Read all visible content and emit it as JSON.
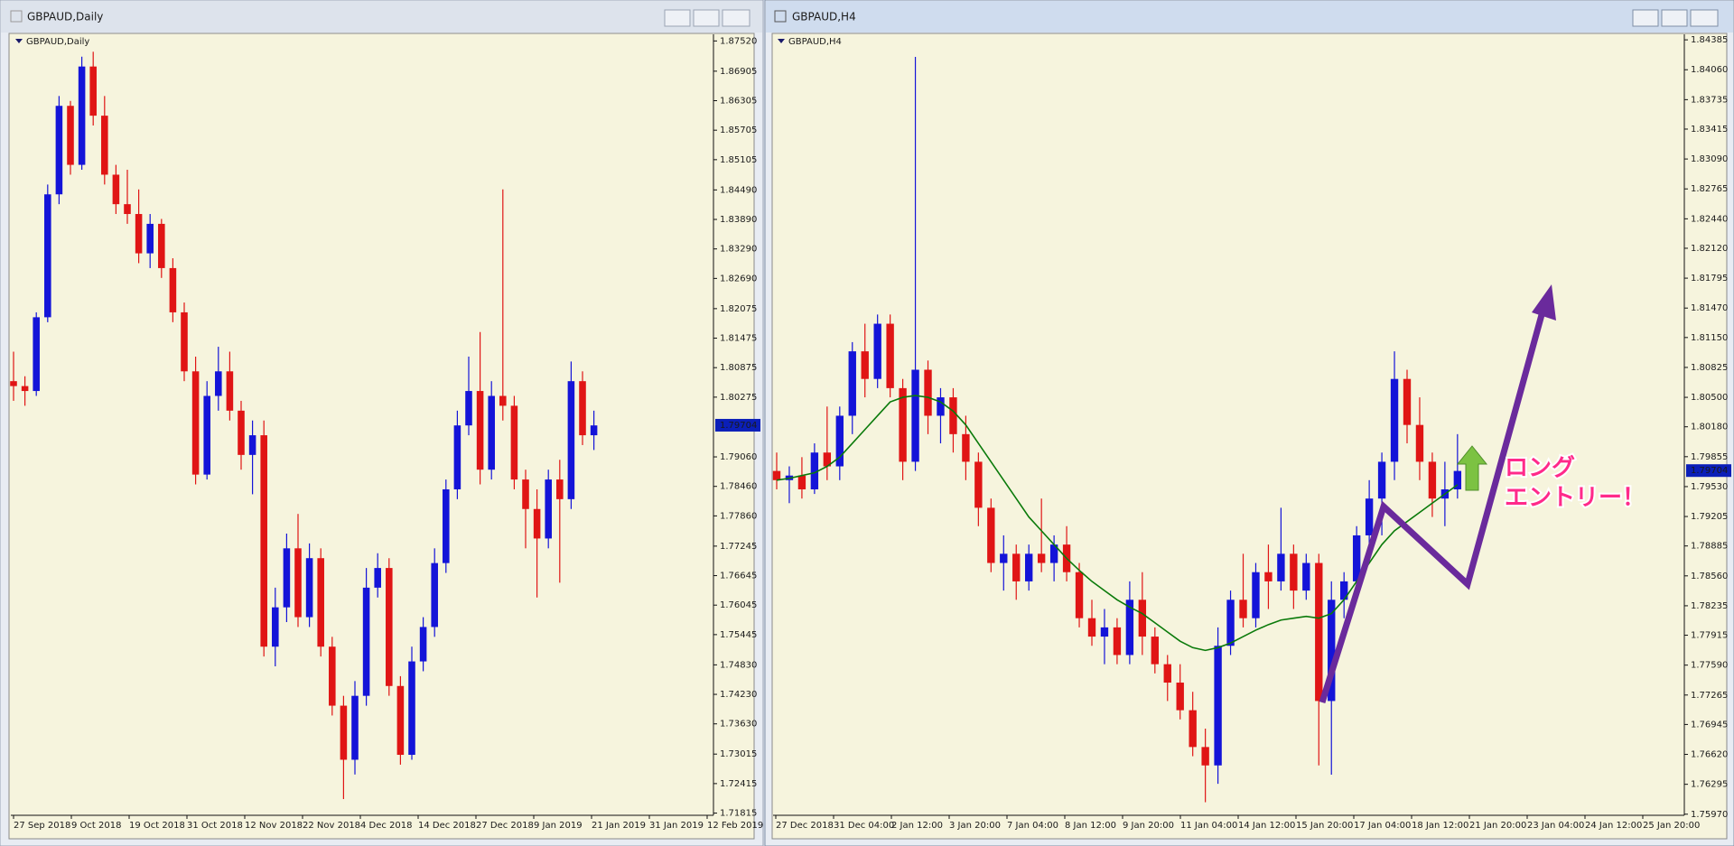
{
  "windows": [
    {
      "title": "GBPAUD,Daily",
      "active": false,
      "chart_data": {
        "type": "candlestick",
        "candles": [
          [
            1.806,
            1.812,
            1.802,
            1.805
          ],
          [
            1.805,
            1.807,
            1.801,
            1.804
          ],
          [
            1.804,
            1.82,
            1.803,
            1.819
          ],
          [
            1.819,
            1.846,
            1.818,
            1.844
          ],
          [
            1.844,
            1.864,
            1.842,
            1.862
          ],
          [
            1.862,
            1.863,
            1.848,
            1.85
          ],
          [
            1.85,
            1.872,
            1.849,
            1.87
          ],
          [
            1.87,
            1.873,
            1.858,
            1.86
          ],
          [
            1.86,
            1.864,
            1.846,
            1.848
          ],
          [
            1.848,
            1.85,
            1.84,
            1.842
          ],
          [
            1.842,
            1.849,
            1.838,
            1.84
          ],
          [
            1.84,
            1.845,
            1.83,
            1.832
          ],
          [
            1.832,
            1.84,
            1.829,
            1.838
          ],
          [
            1.838,
            1.839,
            1.827,
            1.829
          ],
          [
            1.829,
            1.831,
            1.818,
            1.82
          ],
          [
            1.82,
            1.822,
            1.806,
            1.808
          ],
          [
            1.808,
            1.811,
            1.785,
            1.787
          ],
          [
            1.787,
            1.806,
            1.786,
            1.803
          ],
          [
            1.803,
            1.813,
            1.8,
            1.808
          ],
          [
            1.808,
            1.812,
            1.798,
            1.8
          ],
          [
            1.8,
            1.802,
            1.788,
            1.791
          ],
          [
            1.791,
            1.798,
            1.783,
            1.795
          ],
          [
            1.795,
            1.798,
            1.75,
            1.752
          ],
          [
            1.752,
            1.764,
            1.748,
            1.76
          ],
          [
            1.76,
            1.775,
            1.757,
            1.772
          ],
          [
            1.772,
            1.779,
            1.756,
            1.758
          ],
          [
            1.758,
            1.773,
            1.756,
            1.77
          ],
          [
            1.77,
            1.772,
            1.75,
            1.752
          ],
          [
            1.752,
            1.754,
            1.738,
            1.74
          ],
          [
            1.74,
            1.742,
            1.721,
            1.729
          ],
          [
            1.729,
            1.745,
            1.726,
            1.742
          ],
          [
            1.742,
            1.768,
            1.74,
            1.764
          ],
          [
            1.764,
            1.771,
            1.762,
            1.768
          ],
          [
            1.768,
            1.77,
            1.742,
            1.744
          ],
          [
            1.744,
            1.746,
            1.728,
            1.73
          ],
          [
            1.73,
            1.752,
            1.729,
            1.749
          ],
          [
            1.749,
            1.758,
            1.747,
            1.756
          ],
          [
            1.756,
            1.772,
            1.754,
            1.769
          ],
          [
            1.769,
            1.786,
            1.767,
            1.784
          ],
          [
            1.784,
            1.8,
            1.782,
            1.797
          ],
          [
            1.797,
            1.811,
            1.795,
            1.804
          ],
          [
            1.804,
            1.816,
            1.785,
            1.788
          ],
          [
            1.788,
            1.806,
            1.786,
            1.803
          ],
          [
            1.803,
            1.845,
            1.798,
            1.801
          ],
          [
            1.801,
            1.803,
            1.784,
            1.786
          ],
          [
            1.786,
            1.788,
            1.772,
            1.78
          ],
          [
            1.78,
            1.784,
            1.762,
            1.774
          ],
          [
            1.774,
            1.788,
            1.772,
            1.786
          ],
          [
            1.786,
            1.79,
            1.765,
            1.782
          ],
          [
            1.782,
            1.81,
            1.78,
            1.806
          ],
          [
            1.806,
            1.808,
            1.793,
            1.795
          ],
          [
            1.795,
            1.8,
            1.792,
            1.797
          ]
        ],
        "x_labels": [
          "27 Sep 2018",
          "9 Oct 2018",
          "19 Oct 2018",
          "31 Oct 2018",
          "12 Nov 2018",
          "22 Nov 2018",
          "4 Dec 2018",
          "14 Dec 2018",
          "27 Dec 2018",
          "9 Jan 2019",
          "21 Jan 2019",
          "31 Jan 2019",
          "12 Feb 2019"
        ],
        "ylim": [
          1.7177,
          1.87655
        ],
        "yticks": [
          {
            "value": 1.8752,
            "label": "1.87520"
          },
          {
            "value": 1.86905,
            "label": "1.86905"
          },
          {
            "value": 1.86305,
            "label": "1.86305"
          },
          {
            "value": 1.85705,
            "label": "1.85705"
          },
          {
            "value": 1.85105,
            "label": "1.85105"
          },
          {
            "value": 1.8449,
            "label": "1.84490"
          },
          {
            "value": 1.8389,
            "label": "1.83890"
          },
          {
            "value": 1.8329,
            "label": "1.83290"
          },
          {
            "value": 1.8269,
            "label": "1.82690"
          },
          {
            "value": 1.82075,
            "label": "1.82075"
          },
          {
            "value": 1.81475,
            "label": "1.81475"
          },
          {
            "value": 1.80875,
            "label": "1.80875"
          },
          {
            "value": 1.80275,
            "label": "1.80275"
          },
          {
            "value": 1.7906,
            "label": "1.79060"
          },
          {
            "value": 1.7846,
            "label": "1.78460"
          },
          {
            "value": 1.7786,
            "label": "1.77860"
          },
          {
            "value": 1.77245,
            "label": "1.77245"
          },
          {
            "value": 1.76645,
            "label": "1.76645"
          },
          {
            "value": 1.76045,
            "label": "1.76045"
          },
          {
            "value": 1.75445,
            "label": "1.75445"
          },
          {
            "value": 1.7483,
            "label": "1.74830"
          },
          {
            "value": 1.7423,
            "label": "1.74230"
          },
          {
            "value": 1.7363,
            "label": "1.73630"
          },
          {
            "value": 1.73015,
            "label": "1.73015"
          },
          {
            "value": 1.72415,
            "label": "1.72415"
          },
          {
            "value": 1.71815,
            "label": "1.71815"
          }
        ],
        "current_price": 1.79704,
        "up_color": "#1414d8",
        "down_color": "#e01515"
      }
    },
    {
      "title": "GBPAUD,H4",
      "active": true,
      "chart_data": {
        "type": "candlestick",
        "candles": [
          [
            1.797,
            1.799,
            1.795,
            1.796
          ],
          [
            1.796,
            1.7975,
            1.7935,
            1.7965
          ],
          [
            1.7965,
            1.7985,
            1.794,
            1.795
          ],
          [
            1.795,
            1.8,
            1.7945,
            1.799
          ],
          [
            1.799,
            1.804,
            1.796,
            1.7975
          ],
          [
            1.7975,
            1.804,
            1.796,
            1.803
          ],
          [
            1.803,
            1.811,
            1.801,
            1.81
          ],
          [
            1.81,
            1.813,
            1.805,
            1.807
          ],
          [
            1.807,
            1.814,
            1.806,
            1.813
          ],
          [
            1.813,
            1.814,
            1.805,
            1.806
          ],
          [
            1.806,
            1.807,
            1.796,
            1.798
          ],
          [
            1.798,
            1.842,
            1.797,
            1.808
          ],
          [
            1.808,
            1.809,
            1.801,
            1.803
          ],
          [
            1.803,
            1.806,
            1.8,
            1.805
          ],
          [
            1.805,
            1.806,
            1.799,
            1.801
          ],
          [
            1.801,
            1.803,
            1.796,
            1.798
          ],
          [
            1.798,
            1.799,
            1.791,
            1.793
          ],
          [
            1.793,
            1.794,
            1.786,
            1.787
          ],
          [
            1.787,
            1.79,
            1.784,
            1.788
          ],
          [
            1.788,
            1.789,
            1.783,
            1.785
          ],
          [
            1.785,
            1.789,
            1.784,
            1.788
          ],
          [
            1.788,
            1.794,
            1.786,
            1.787
          ],
          [
            1.787,
            1.79,
            1.785,
            1.789
          ],
          [
            1.789,
            1.791,
            1.785,
            1.786
          ],
          [
            1.786,
            1.787,
            1.78,
            1.781
          ],
          [
            1.781,
            1.783,
            1.778,
            1.779
          ],
          [
            1.779,
            1.782,
            1.776,
            1.78
          ],
          [
            1.78,
            1.781,
            1.776,
            1.777
          ],
          [
            1.777,
            1.785,
            1.776,
            1.783
          ],
          [
            1.783,
            1.786,
            1.777,
            1.779
          ],
          [
            1.779,
            1.78,
            1.775,
            1.776
          ],
          [
            1.776,
            1.777,
            1.772,
            1.774
          ],
          [
            1.774,
            1.776,
            1.77,
            1.771
          ],
          [
            1.771,
            1.773,
            1.766,
            1.767
          ],
          [
            1.767,
            1.769,
            1.761,
            1.765
          ],
          [
            1.765,
            1.78,
            1.763,
            1.778
          ],
          [
            1.778,
            1.784,
            1.777,
            1.783
          ],
          [
            1.783,
            1.788,
            1.78,
            1.781
          ],
          [
            1.781,
            1.787,
            1.78,
            1.786
          ],
          [
            1.786,
            1.789,
            1.782,
            1.785
          ],
          [
            1.785,
            1.793,
            1.784,
            1.788
          ],
          [
            1.788,
            1.789,
            1.782,
            1.784
          ],
          [
            1.784,
            1.788,
            1.783,
            1.787
          ],
          [
            1.787,
            1.788,
            1.765,
            1.772
          ],
          [
            1.772,
            1.785,
            1.764,
            1.783
          ],
          [
            1.783,
            1.786,
            1.781,
            1.785
          ],
          [
            1.785,
            1.791,
            1.784,
            1.79
          ],
          [
            1.79,
            1.796,
            1.788,
            1.794
          ],
          [
            1.794,
            1.799,
            1.79,
            1.798
          ],
          [
            1.798,
            1.81,
            1.796,
            1.807
          ],
          [
            1.807,
            1.808,
            1.8,
            1.802
          ],
          [
            1.802,
            1.805,
            1.796,
            1.798
          ],
          [
            1.798,
            1.799,
            1.792,
            1.794
          ],
          [
            1.794,
            1.798,
            1.791,
            1.795
          ],
          [
            1.795,
            1.801,
            1.794,
            1.797
          ]
        ],
        "x_labels": [
          "27 Dec 2018",
          "31 Dec 04:00",
          "2 Jan 12:00",
          "3 Jan 20:00",
          "7 Jan 04:00",
          "8 Jan 12:00",
          "9 Jan 20:00",
          "11 Jan 04:00",
          "14 Jan 12:00",
          "15 Jan 20:00",
          "17 Jan 04:00",
          "18 Jan 12:00",
          "21 Jan 20:00",
          "23 Jan 04:00",
          "24 Jan 12:00",
          "25 Jan 20:00"
        ],
        "ylim": [
          1.75958,
          1.84445
        ],
        "yticks": [
          {
            "value": 1.84385,
            "label": "1.84385"
          },
          {
            "value": 1.8406,
            "label": "1.84060"
          },
          {
            "value": 1.83735,
            "label": "1.83735"
          },
          {
            "value": 1.83415,
            "label": "1.83415"
          },
          {
            "value": 1.8309,
            "label": "1.83090"
          },
          {
            "value": 1.82765,
            "label": "1.82765"
          },
          {
            "value": 1.8244,
            "label": "1.82440"
          },
          {
            "value": 1.8212,
            "label": "1.82120"
          },
          {
            "value": 1.81795,
            "label": "1.81795"
          },
          {
            "value": 1.8147,
            "label": "1.81470"
          },
          {
            "value": 1.8115,
            "label": "1.81150"
          },
          {
            "value": 1.80825,
            "label": "1.80825"
          },
          {
            "value": 1.805,
            "label": "1.80500"
          },
          {
            "value": 1.8018,
            "label": "1.80180"
          },
          {
            "value": 1.79855,
            "label": "1.79855"
          },
          {
            "value": 1.7953,
            "label": "1.79530"
          },
          {
            "value": 1.79205,
            "label": "1.79205"
          },
          {
            "value": 1.78885,
            "label": "1.78885"
          },
          {
            "value": 1.7856,
            "label": "1.78560"
          },
          {
            "value": 1.78235,
            "label": "1.78235"
          },
          {
            "value": 1.77915,
            "label": "1.77915"
          },
          {
            "value": 1.7759,
            "label": "1.77590"
          },
          {
            "value": 1.77265,
            "label": "1.77265"
          },
          {
            "value": 1.76945,
            "label": "1.76945"
          },
          {
            "value": 1.7662,
            "label": "1.76620"
          },
          {
            "value": 1.76295,
            "label": "1.76295"
          },
          {
            "value": 1.7597,
            "label": "1.75970"
          }
        ],
        "current_price": 1.79704,
        "up_color": "#1414d8",
        "down_color": "#e01515",
        "ma": {
          "color": "#0a7a0a",
          "values": [
            1.796,
            1.7962,
            1.7965,
            1.7968,
            1.7975,
            1.7985,
            1.8,
            1.8015,
            1.803,
            1.8045,
            1.805,
            1.8052,
            1.805,
            1.8045,
            1.8035,
            1.802,
            1.8,
            1.798,
            1.796,
            1.794,
            1.792,
            1.7905,
            1.789,
            1.7875,
            1.7862,
            1.785,
            1.784,
            1.783,
            1.7822,
            1.7815,
            1.7805,
            1.7795,
            1.7785,
            1.7778,
            1.7775,
            1.7778,
            1.7783,
            1.779,
            1.7797,
            1.7803,
            1.7808,
            1.781,
            1.7812,
            1.781,
            1.7815,
            1.783,
            1.785,
            1.787,
            1.789,
            1.7905,
            1.7915,
            1.7925,
            1.7935,
            1.7945,
            1.7955
          ]
        }
      }
    }
  ],
  "annotation": {
    "lines": [
      "ロング",
      "エントリー！"
    ]
  }
}
